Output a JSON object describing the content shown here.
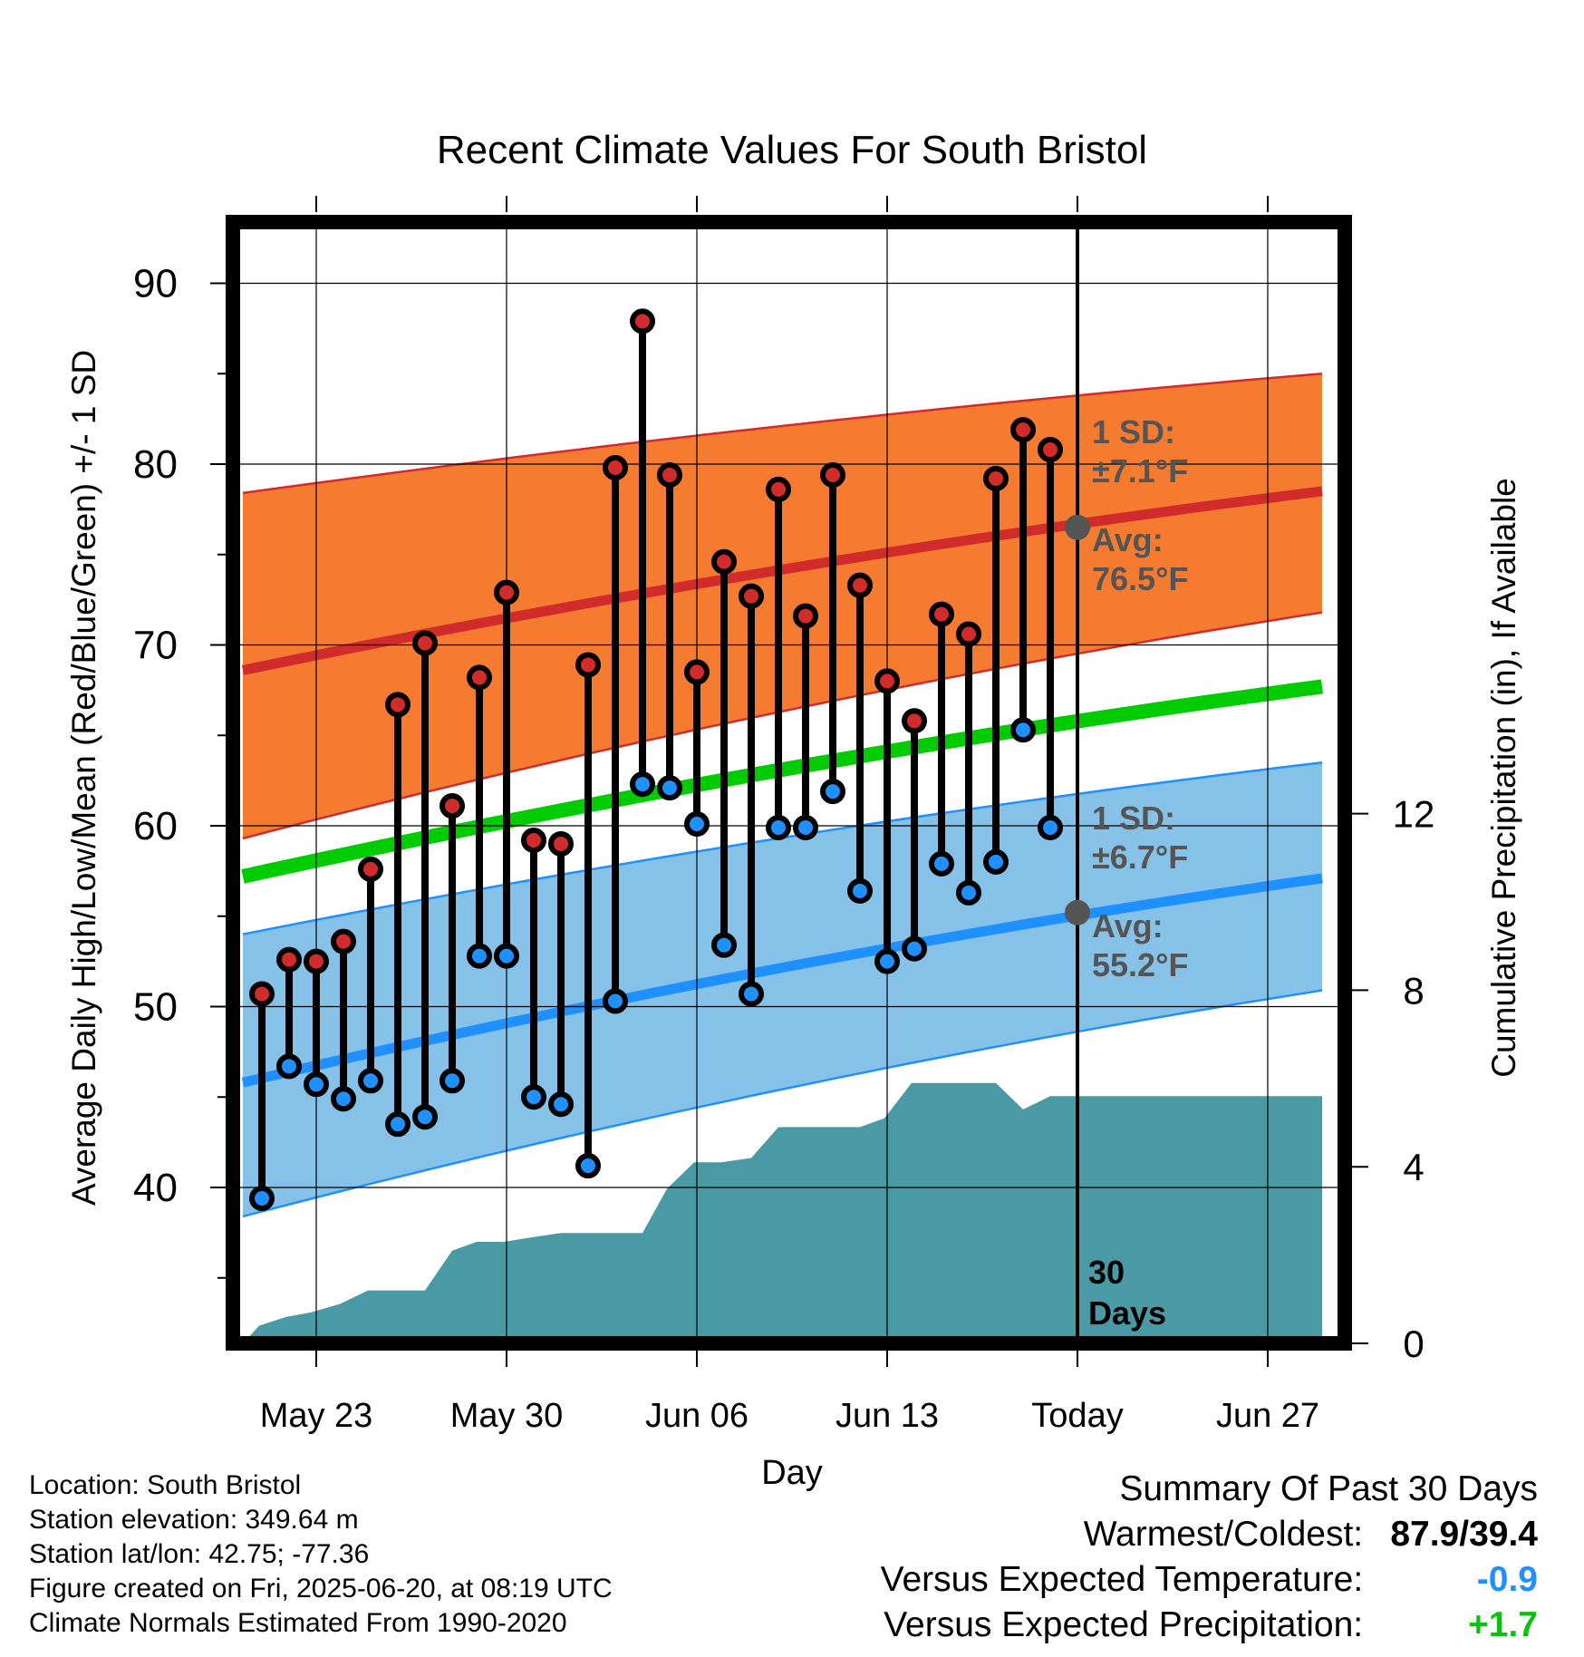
{
  "chart_data": {
    "type": "line",
    "title": "Recent Climate Values For South Bristol",
    "xlabel": "Day",
    "ylabel": "Average Daily High/Low/Mean (Red/Blue/Green) +/- 1 SD",
    "y2label": "Cumulative Precipitation (in), If Available",
    "ylim": [
      30.5,
      93
    ],
    "y2lim": [
      0,
      25
    ],
    "xlim": [
      -3.2,
      37.2
    ],
    "y_ticks": [
      40,
      50,
      60,
      70,
      80,
      90
    ],
    "y2_ticks": [
      0,
      4,
      8,
      12
    ],
    "x_ticks": [
      {
        "x": 0,
        "label": "May 23"
      },
      {
        "x": 7,
        "label": "May 30"
      },
      {
        "x": 14,
        "label": "Jun 06"
      },
      {
        "x": 21,
        "label": "Jun 13"
      },
      {
        "x": 28,
        "label": "Today"
      },
      {
        "x": 35,
        "label": "Jun 27"
      }
    ],
    "grid": true,
    "today_x": 28,
    "today_label": [
      "30",
      "Days"
    ],
    "normals_x": [
      -2.7,
      37
    ],
    "normal_high": {
      "avg": [
        68.6,
        78.5
      ],
      "upper": [
        78.4,
        85.0
      ],
      "lower": [
        59.3,
        71.8
      ],
      "label": [
        "1 SD:",
        "±7.1°F",
        "Avg:",
        "76.5°F"
      ],
      "today_avg": 76.5
    },
    "normal_low": {
      "avg": [
        45.8,
        57.1
      ],
      "upper": [
        54.0,
        63.5
      ],
      "lower": [
        38.4,
        50.9
      ],
      "label": [
        "1 SD:",
        "±6.7°F",
        "Avg:",
        "55.2°F"
      ],
      "today_avg": 55.2
    },
    "normal_mean": {
      "avg": [
        57.2,
        67.7
      ]
    },
    "series": [
      {
        "name": "High",
        "x": [
          -2,
          -1,
          0,
          1,
          2,
          3,
          4,
          5,
          6,
          7,
          8,
          9,
          10,
          11,
          12,
          13,
          14,
          15,
          16,
          17,
          18,
          19,
          20,
          21,
          22,
          23,
          24,
          25,
          26,
          27
        ],
        "values": [
          50.7,
          52.6,
          52.5,
          53.6,
          57.6,
          66.7,
          70.1,
          61.1,
          68.2,
          72.9,
          59.2,
          59.0,
          68.9,
          79.8,
          87.9,
          79.4,
          68.5,
          74.6,
          72.7,
          78.6,
          71.6,
          79.4,
          73.3,
          68.0,
          65.8,
          71.7,
          70.6,
          79.2,
          81.9,
          80.8
        ]
      },
      {
        "name": "Low",
        "x": [
          -2,
          -1,
          0,
          1,
          2,
          3,
          4,
          5,
          6,
          7,
          8,
          9,
          10,
          11,
          12,
          13,
          14,
          15,
          16,
          17,
          18,
          19,
          20,
          21,
          22,
          23,
          24,
          25,
          26,
          27
        ],
        "values": [
          39.4,
          46.7,
          45.7,
          44.9,
          45.9,
          43.5,
          43.9,
          45.9,
          52.8,
          52.8,
          45.0,
          44.6,
          41.2,
          50.3,
          62.3,
          62.1,
          60.1,
          53.4,
          50.7,
          59.9,
          59.9,
          61.9,
          56.4,
          52.5,
          53.2,
          57.9,
          56.3,
          58.0,
          65.3,
          59.9
        ]
      }
    ],
    "precip": {
      "x": [
        -2.7,
        -2.1,
        -1.1,
        -0.2,
        0.9,
        1.9,
        3.0,
        4.0,
        5.0,
        5.9,
        6.9,
        7.9,
        9.0,
        10.0,
        11.0,
        12.0,
        12.9,
        13.9,
        14.9,
        16.0,
        17.0,
        18.0,
        19.0,
        20.0,
        20.9,
        21.9,
        23.0,
        24.0,
        25.0,
        26.0,
        27.0,
        28.0,
        37.0
      ],
      "values": [
        0.0,
        0.4,
        0.6,
        0.7,
        0.9,
        1.2,
        1.2,
        1.2,
        2.1,
        2.3,
        2.3,
        2.4,
        2.5,
        2.5,
        2.5,
        2.5,
        3.5,
        4.1,
        4.1,
        4.2,
        4.9,
        4.9,
        4.9,
        4.9,
        5.1,
        5.9,
        5.9,
        5.9,
        5.9,
        5.3,
        5.6,
        5.6,
        5.6
      ]
    },
    "colors": {
      "high_band": "#f47b30",
      "high_line": "#d12b2b",
      "high_edge": "#d12b2b",
      "low_band": "#86c2e8",
      "low_line": "#1f90ff",
      "low_edge": "#1f90ff",
      "mean_line": "#00cc00",
      "precip": "#4a9aa5",
      "high_marker": "#d12b2b",
      "low_marker": "#1f90ff",
      "annot": "#555555"
    }
  },
  "footer": {
    "location": "Location: South Bristol",
    "elevation": "Station elevation: 349.64 m",
    "latlon": "Station lat/lon: 42.75; -77.36",
    "created": "Figure created on Fri, 2025-06-20, at 08:19 UTC",
    "normals": "Climate Normals Estimated From 1990-2020"
  },
  "summary": {
    "heading": "Summary Of Past 30 Days",
    "warm_cold_label": "Warmest/Coldest:",
    "warm_cold_value": "87.9/39.4",
    "temp_label": "Versus Expected Temperature:",
    "temp_value": "-0.9",
    "precip_label": "Versus Expected Precipitation:",
    "precip_value": "+1.7"
  }
}
